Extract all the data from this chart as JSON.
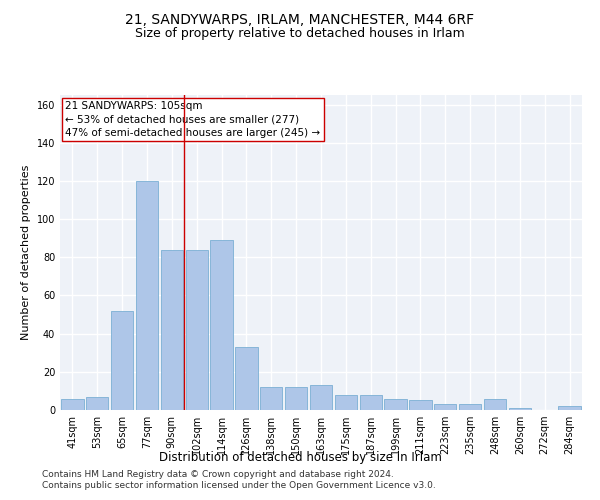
{
  "title1": "21, SANDYWARPS, IRLAM, MANCHESTER, M44 6RF",
  "title2": "Size of property relative to detached houses in Irlam",
  "xlabel": "Distribution of detached houses by size in Irlam",
  "ylabel": "Number of detached properties",
  "categories": [
    "41sqm",
    "53sqm",
    "65sqm",
    "77sqm",
    "90sqm",
    "102sqm",
    "114sqm",
    "126sqm",
    "138sqm",
    "150sqm",
    "163sqm",
    "175sqm",
    "187sqm",
    "199sqm",
    "211sqm",
    "223sqm",
    "235sqm",
    "248sqm",
    "260sqm",
    "272sqm",
    "284sqm"
  ],
  "values": [
    6,
    7,
    52,
    120,
    84,
    84,
    89,
    33,
    12,
    12,
    13,
    8,
    8,
    6,
    5,
    3,
    3,
    6,
    1,
    0,
    2
  ],
  "bar_color": "#aec6e8",
  "bar_edge_color": "#7bafd4",
  "vline_x": 4.5,
  "vline_color": "#cc0000",
  "annotation_text": "21 SANDYWARPS: 105sqm\n← 53% of detached houses are smaller (277)\n47% of semi-detached houses are larger (245) →",
  "annotation_box_color": "white",
  "annotation_box_edge_color": "#cc0000",
  "ylim": [
    0,
    165
  ],
  "yticks": [
    0,
    20,
    40,
    60,
    80,
    100,
    120,
    140,
    160
  ],
  "footer1": "Contains HM Land Registry data © Crown copyright and database right 2024.",
  "footer2": "Contains public sector information licensed under the Open Government Licence v3.0.",
  "background_color": "#eef2f8",
  "grid_color": "#ffffff",
  "title1_fontsize": 10,
  "title2_fontsize": 9,
  "xlabel_fontsize": 8.5,
  "ylabel_fontsize": 8,
  "tick_fontsize": 7,
  "annotation_fontsize": 7.5,
  "footer_fontsize": 6.5
}
